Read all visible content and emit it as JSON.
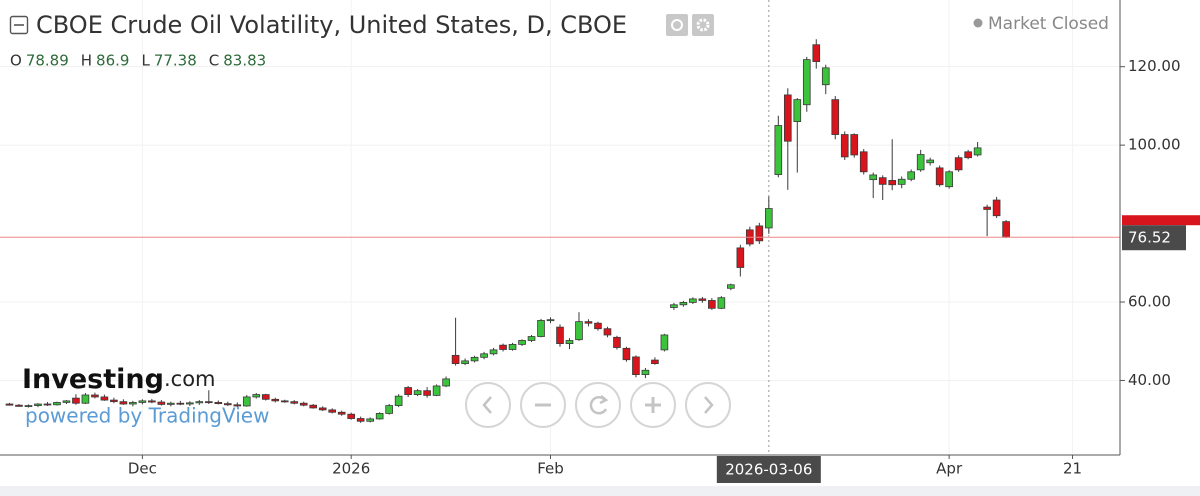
{
  "chart_data": {
    "type": "candlestick",
    "title": "CBOE Crude Oil Volatility, United States, D, CBOE",
    "ohlc_labels": [
      "O",
      "H",
      "L",
      "C"
    ],
    "crosshair": 80,
    "up_color": "#3cc33c",
    "down_color": "#d8141c",
    "border_color": "#3a3a3a",
    "grid": true,
    "xlim": [
      -1,
      117
    ],
    "xticks": [
      {
        "value": 14,
        "label": "Dec"
      },
      {
        "value": 36,
        "label": "2026"
      },
      {
        "value": 57,
        "label": "Feb"
      },
      {
        "value": 80,
        "label": "2026-03-06"
      },
      {
        "value": 99,
        "label": "Apr"
      },
      {
        "value": 112,
        "label": "21"
      }
    ],
    "ylim": [
      21,
      137
    ],
    "yticks": [
      {
        "value": 40,
        "label": "40.00"
      },
      {
        "value": 60,
        "label": "60.00"
      },
      {
        "value": 100,
        "label": "100.00"
      },
      {
        "value": 120,
        "label": "120.00"
      }
    ],
    "open": [
      34.0,
      33.7,
      33.4,
      33.6,
      34.0,
      33.8,
      34.4,
      35.5,
      34.2,
      36.3,
      35.8,
      35.0,
      34.6,
      34.0,
      34.4,
      34.8,
      34.5,
      33.9,
      34.2,
      34.0,
      34.3,
      34.6,
      34.4,
      34.1,
      33.8,
      33.5,
      35.8,
      36.4,
      35.2,
      34.8,
      34.6,
      34.2,
      33.7,
      33.0,
      32.5,
      31.9,
      31.4,
      30.3,
      29.6,
      30.2,
      31.6,
      33.6,
      38.2,
      36.4,
      37.4,
      36.2,
      38.6,
      46.4,
      44.3,
      45.0,
      45.9,
      46.8,
      49.0,
      47.9,
      49.2,
      50.2,
      51.2,
      55.3,
      53.6,
      49.4,
      50.4,
      55.0,
      54.6,
      53.2,
      51.0,
      48.2,
      46.0,
      41.5,
      45.2,
      47.8,
      58.6,
      59.3,
      59.9,
      60.8,
      60.4,
      58.4,
      63.5,
      73.8,
      78.4,
      79.4,
      78.89,
      92.5,
      112.8,
      106.0,
      110.3,
      125.6,
      115.4,
      111.6,
      102.7,
      102.7,
      98.3,
      91.2,
      91.7,
      91.0,
      90.0,
      91.3,
      93.7,
      95.5,
      94.2,
      89.4,
      96.8,
      98.3,
      97.5,
      84.2,
      86.0,
      80.5
    ],
    "high": [
      34.3,
      34.0,
      33.9,
      34.2,
      34.5,
      34.6,
      35.0,
      36.5,
      36.8,
      36.9,
      36.4,
      35.6,
      35.2,
      34.8,
      35.2,
      35.3,
      35.0,
      34.6,
      34.8,
      34.7,
      35.0,
      37.5,
      34.9,
      34.6,
      34.4,
      36.3,
      36.8,
      36.6,
      35.6,
      35.1,
      35.0,
      34.6,
      34.0,
      33.4,
      32.9,
      32.3,
      31.8,
      30.8,
      30.6,
      31.9,
      34.0,
      36.5,
      38.6,
      37.8,
      38.3,
      39.0,
      41.0,
      56.0,
      45.6,
      46.3,
      47.3,
      48.3,
      49.4,
      49.6,
      50.5,
      51.6,
      55.7,
      56.1,
      54.3,
      50.8,
      57.4,
      55.6,
      55.0,
      53.7,
      51.4,
      48.6,
      46.4,
      43.2,
      45.9,
      51.9,
      59.8,
      60.3,
      61.2,
      61.3,
      61.0,
      61.5,
      64.7,
      74.6,
      79.2,
      80.2,
      86.9,
      107.5,
      114.5,
      112.0,
      122.5,
      127.0,
      120.5,
      112.5,
      103.5,
      103.0,
      99.0,
      93.0,
      92.3,
      101.5,
      92.0,
      93.8,
      98.8,
      96.8,
      94.8,
      93.6,
      97.4,
      98.8,
      100.8,
      84.8,
      86.8,
      80.9
    ],
    "low": [
      33.6,
      33.3,
      33.1,
      33.2,
      33.5,
      33.6,
      34.0,
      33.8,
      34.0,
      35.4,
      34.8,
      34.2,
      33.8,
      33.4,
      33.9,
      34.2,
      33.6,
      33.4,
      33.7,
      33.5,
      33.8,
      34.0,
      33.9,
      33.5,
      33.2,
      33.3,
      35.4,
      34.9,
      34.4,
      34.3,
      33.9,
      33.4,
      32.8,
      32.2,
      31.6,
      31.0,
      30.0,
      29.2,
      29.3,
      30.0,
      31.3,
      33.2,
      35.8,
      36.0,
      35.6,
      36.0,
      38.3,
      43.8,
      43.9,
      44.6,
      45.4,
      46.4,
      47.4,
      47.6,
      48.8,
      49.8,
      51.0,
      54.6,
      48.6,
      48.0,
      50.1,
      53.8,
      52.7,
      51.0,
      47.9,
      44.8,
      40.8,
      40.6,
      44.0,
      47.4,
      58.0,
      58.8,
      59.5,
      59.8,
      58.0,
      58.2,
      63.0,
      66.5,
      74.2,
      74.8,
      77.38,
      91.8,
      88.6,
      93.0,
      108.5,
      119.5,
      113.0,
      101.5,
      96.2,
      96.8,
      92.5,
      86.5,
      86.0,
      88.5,
      89.0,
      90.8,
      93.2,
      94.8,
      89.4,
      88.9,
      93.2,
      96.4,
      97.1,
      76.8,
      81.4,
      76.3
    ],
    "close": [
      33.7,
      33.4,
      33.6,
      34.0,
      33.8,
      34.4,
      34.8,
      34.2,
      36.3,
      35.8,
      35.0,
      34.6,
      34.0,
      34.4,
      34.8,
      34.5,
      33.9,
      34.2,
      34.0,
      34.3,
      34.6,
      34.4,
      34.1,
      33.8,
      33.5,
      35.8,
      36.4,
      35.2,
      34.8,
      34.6,
      34.2,
      33.7,
      33.0,
      32.5,
      31.9,
      31.4,
      30.3,
      29.6,
      30.2,
      31.6,
      33.6,
      36.0,
      36.4,
      37.4,
      36.2,
      38.6,
      40.4,
      44.3,
      45.0,
      45.9,
      46.8,
      47.8,
      47.9,
      49.2,
      50.2,
      51.2,
      55.3,
      55.5,
      49.4,
      50.2,
      55.0,
      54.6,
      53.2,
      51.6,
      48.4,
      45.3,
      41.5,
      42.6,
      44.3,
      51.6,
      59.3,
      59.9,
      60.8,
      60.4,
      58.4,
      61.1,
      64.4,
      68.8,
      74.8,
      75.6,
      83.83,
      105.0,
      101.0,
      111.6,
      121.8,
      121.3,
      119.7,
      102.7,
      97.0,
      97.5,
      93.2,
      92.4,
      90.0,
      89.9,
      91.3,
      93.2,
      97.6,
      96.2,
      89.9,
      93.2,
      93.7,
      96.8,
      99.3,
      83.6,
      82.0,
      76.52
    ]
  },
  "ui": {
    "status": "Market Closed",
    "watermark_brand": "Investing",
    "watermark_domain": ".com",
    "powered_by": "powered by TradingView"
  }
}
